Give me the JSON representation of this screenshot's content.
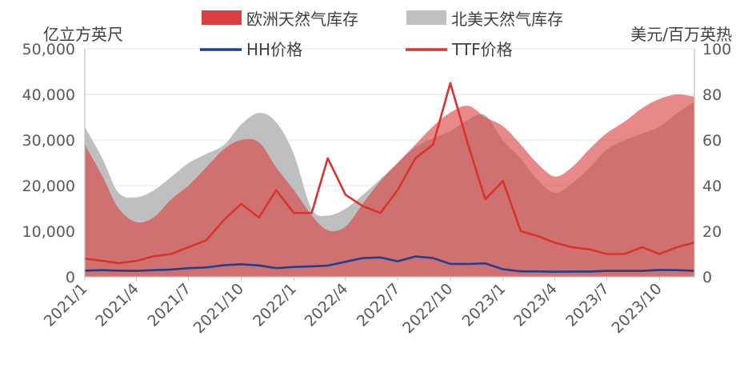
{
  "chart_data": {
    "type": "area",
    "x_dates": [
      "2021-01-01",
      "2021-02-01",
      "2021-03-01",
      "2021-04-01",
      "2021-05-01",
      "2021-06-01",
      "2021-07-01",
      "2021-08-01",
      "2021-09-01",
      "2021-10-01",
      "2021-11-01",
      "2021-12-01",
      "2022-01-01",
      "2022-02-01",
      "2022-03-01",
      "2022-04-01",
      "2022-05-01",
      "2022-06-01",
      "2022-07-01",
      "2022-08-01",
      "2022-09-01",
      "2022-10-01",
      "2022-11-01",
      "2022-12-01",
      "2023-01-01",
      "2023-02-01",
      "2023-03-01",
      "2023-04-01",
      "2023-05-01",
      "2023-06-01",
      "2023-07-01",
      "2023-08-01",
      "2023-09-01",
      "2023-10-01",
      "2023-11-01",
      "2023-12-01"
    ],
    "x_tick_labels": [
      "2021/1",
      "2021/4",
      "2021/7",
      "2021/10",
      "2022/1",
      "2022/4",
      "2022/7",
      "2022/10",
      "2023/1",
      "2023/4",
      "2023/7",
      "2023/10"
    ],
    "left_axis": {
      "unit": "亿立方英尺",
      "ylim": [
        0,
        50000
      ],
      "ticks": [
        "0",
        "10,000",
        "20,000",
        "30,000",
        "40,000",
        "50,000"
      ]
    },
    "right_axis": {
      "unit": "美元/百万英热",
      "ylim": [
        0,
        100
      ],
      "ticks": [
        "0",
        "20",
        "40",
        "60",
        "80",
        "100"
      ]
    },
    "legend": [
      "欧洲天然气库存",
      "北美天然气库存",
      "HH价格",
      "TTF价格"
    ],
    "series": [
      {
        "name": "欧洲天然气库存",
        "axis": "left",
        "kind": "area",
        "color": "#d9403f",
        "values": [
          29000,
          22000,
          15000,
          12000,
          13000,
          17000,
          20000,
          24000,
          28000,
          30000,
          29500,
          24000,
          19000,
          13500,
          10200,
          11000,
          16000,
          21000,
          25000,
          29000,
          33000,
          36000,
          37500,
          35000,
          33000,
          29000,
          25000,
          22000,
          24000,
          28000,
          31500,
          34000,
          37000,
          39000,
          40000,
          39500
        ]
      },
      {
        "name": "北美天然气库存",
        "axis": "left",
        "kind": "area",
        "color": "#bfbfbf",
        "values": [
          33000,
          26000,
          18500,
          17500,
          19000,
          22000,
          25000,
          27000,
          29000,
          33500,
          36000,
          34000,
          27000,
          15000,
          13500,
          15000,
          18000,
          21500,
          25000,
          28500,
          30500,
          32000,
          34500,
          35500,
          30000,
          26000,
          21500,
          18500,
          20500,
          24000,
          28000,
          30000,
          31500,
          33000,
          36000,
          38500
        ]
      },
      {
        "name": "HH价格",
        "axis": "right",
        "kind": "line",
        "color": "#1f3f8f",
        "values": [
          2.7,
          2.9,
          2.7,
          2.6,
          2.9,
          3.2,
          3.8,
          4.1,
          5.1,
          5.5,
          5.0,
          3.8,
          4.3,
          4.6,
          4.9,
          6.6,
          8.2,
          8.5,
          6.8,
          8.9,
          8.2,
          5.7,
          5.6,
          5.9,
          3.3,
          2.4,
          2.4,
          2.2,
          2.3,
          2.3,
          2.6,
          2.6,
          2.6,
          3.0,
          2.9,
          2.6
        ]
      },
      {
        "name": "TTF价格",
        "axis": "right",
        "kind": "line",
        "color": "#d8332c",
        "values": [
          8,
          7,
          6,
          7,
          9,
          10,
          13,
          16,
          25,
          32,
          26,
          38,
          28,
          28,
          52,
          36,
          31,
          28,
          38,
          52,
          58,
          85,
          58,
          34,
          42,
          20,
          18,
          15,
          13,
          12,
          10,
          10,
          13,
          10,
          13,
          15
        ]
      }
    ]
  }
}
